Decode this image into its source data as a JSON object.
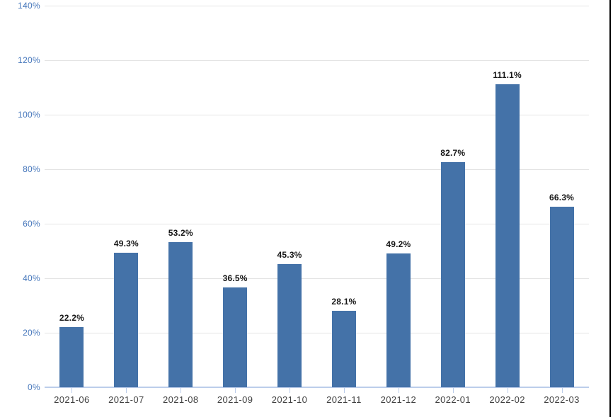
{
  "chart_data": {
    "type": "bar",
    "categories": [
      "2021-06",
      "2021-07",
      "2021-08",
      "2021-09",
      "2021-10",
      "2021-11",
      "2021-12",
      "2022-01",
      "2022-02",
      "2022-03"
    ],
    "values": [
      22.2,
      49.3,
      53.2,
      36.5,
      45.3,
      28.1,
      49.2,
      82.7,
      111.1,
      66.3
    ],
    "value_labels": [
      "22.2%",
      "49.3%",
      "53.2%",
      "36.5%",
      "45.3%",
      "28.1%",
      "49.2%",
      "82.7%",
      "111.1%",
      "66.3%"
    ],
    "y_ticks": [
      "0%",
      "20%",
      "40%",
      "60%",
      "80%",
      "100%",
      "120%",
      "140%"
    ],
    "ylim": [
      0,
      140
    ],
    "y_tick_step": 20,
    "title": "",
    "xlabel": "",
    "ylabel": "",
    "grid": true,
    "legend": "none"
  },
  "colors": {
    "background": "#ffffff",
    "bar_fill": "#4472a8",
    "grid_line": "#e4e4e4",
    "axis_line": "#bccdea",
    "y_tick_label": "#4576bb",
    "x_tick_label": "#3f3f3f",
    "value_label": "#161616",
    "page_border": "#000000"
  }
}
